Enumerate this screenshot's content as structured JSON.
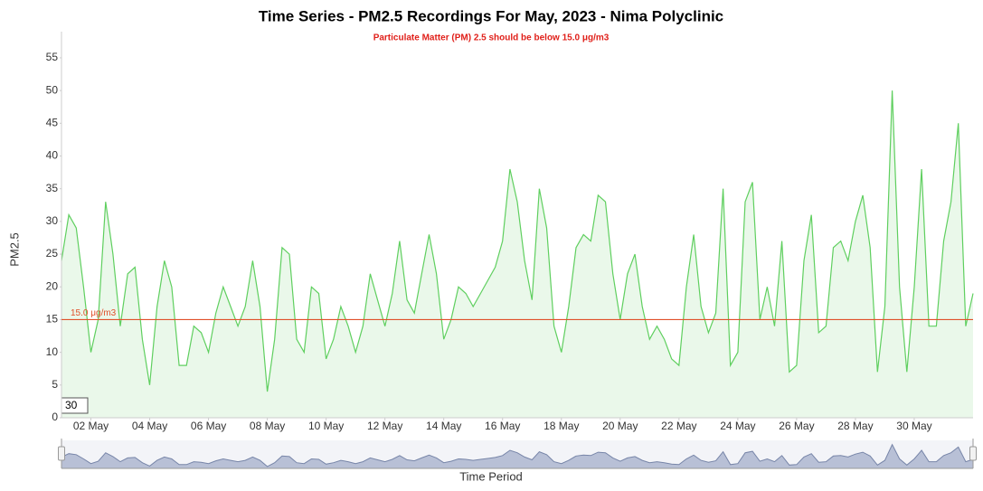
{
  "chart_data": {
    "type": "area",
    "title": "Time Series - PM2.5 Recordings For May, 2023 - Nima Polyclinic",
    "subtitle": "Particulate Matter (PM) 2.5 should be below 15.0 μg/m3",
    "y_label": "PM2.5",
    "x_label": "Time Period",
    "zoom_box": "30",
    "threshold": {
      "value": 15,
      "label": "15.0 μg/m3"
    },
    "threshold_color": "#e0502a",
    "color": "#5fcf5f",
    "fill_color": "#eaf8ea",
    "x": [
      1,
      1.25,
      1.5,
      1.75,
      2,
      2.25,
      2.5,
      2.75,
      3,
      3.25,
      3.5,
      3.75,
      4,
      4.25,
      4.5,
      4.75,
      5,
      5.25,
      5.5,
      5.75,
      6,
      6.25,
      6.5,
      6.75,
      7,
      7.25,
      7.5,
      7.75,
      8,
      8.25,
      8.5,
      8.75,
      9,
      9.25,
      9.5,
      9.75,
      10,
      10.25,
      10.5,
      10.75,
      11,
      11.25,
      11.5,
      11.75,
      12,
      12.25,
      12.5,
      12.75,
      13,
      13.25,
      13.5,
      13.75,
      14,
      14.25,
      14.5,
      14.75,
      15,
      15.25,
      15.5,
      15.75,
      16,
      16.25,
      16.5,
      16.75,
      17,
      17.25,
      17.5,
      17.75,
      18,
      18.25,
      18.5,
      18.75,
      19,
      19.25,
      19.5,
      19.75,
      20,
      20.25,
      20.5,
      20.75,
      21,
      21.25,
      21.5,
      21.75,
      22,
      22.25,
      22.5,
      22.75,
      23,
      23.25,
      23.5,
      23.75,
      24,
      24.25,
      24.5,
      24.75,
      25,
      25.25,
      25.5,
      25.75,
      26,
      26.25,
      26.5,
      26.75,
      27,
      27.25,
      27.5,
      27.75,
      28,
      28.25,
      28.5,
      28.75,
      29,
      29.25,
      29.5,
      29.75,
      30,
      30.25,
      30.5,
      30.75,
      31,
      31.25,
      31.5,
      31.75,
      32
    ],
    "values": [
      24,
      31,
      29,
      20,
      10,
      15,
      33,
      25,
      14,
      22,
      23,
      12,
      5,
      17,
      24,
      20,
      8,
      8,
      14,
      13,
      10,
      16,
      20,
      17,
      14,
      17,
      24,
      17,
      4,
      12,
      26,
      25,
      12,
      10,
      20,
      19,
      9,
      12,
      17,
      14,
      10,
      14,
      22,
      18,
      14,
      19,
      27,
      18,
      16,
      22,
      28,
      22,
      12,
      15,
      20,
      19,
      17,
      19,
      21,
      23,
      27,
      38,
      33,
      24,
      18,
      35,
      29,
      14,
      10,
      17,
      26,
      28,
      27,
      34,
      33,
      22,
      15,
      22,
      25,
      17,
      12,
      14,
      12,
      9,
      8,
      20,
      28,
      17,
      13,
      16,
      35,
      8,
      10,
      33,
      36,
      15,
      20,
      14,
      27,
      7,
      8,
      24,
      31,
      13,
      14,
      26,
      27,
      24,
      30,
      34,
      26,
      7,
      17,
      50,
      20,
      7,
      20,
      38,
      14,
      14,
      27,
      33,
      45,
      14,
      19
    ],
    "xlim": [
      1,
      32
    ],
    "ylim": [
      0,
      59
    ],
    "yticks": [
      0,
      5,
      10,
      15,
      20,
      25,
      30,
      35,
      40,
      45,
      50,
      55
    ],
    "xticks": [
      {
        "value": 2,
        "label": "02 May"
      },
      {
        "value": 4,
        "label": "04 May"
      },
      {
        "value": 6,
        "label": "06 May"
      },
      {
        "value": 8,
        "label": "08 May"
      },
      {
        "value": 10,
        "label": "10 May"
      },
      {
        "value": 12,
        "label": "12 May"
      },
      {
        "value": 14,
        "label": "14 May"
      },
      {
        "value": 16,
        "label": "16 May"
      },
      {
        "value": 18,
        "label": "18 May"
      },
      {
        "value": 20,
        "label": "20 May"
      },
      {
        "value": 22,
        "label": "22 May"
      },
      {
        "value": 24,
        "label": "24 May"
      },
      {
        "value": 26,
        "label": "26 May"
      },
      {
        "value": 28,
        "label": "28 May"
      },
      {
        "value": 30,
        "label": "30 May"
      }
    ]
  }
}
